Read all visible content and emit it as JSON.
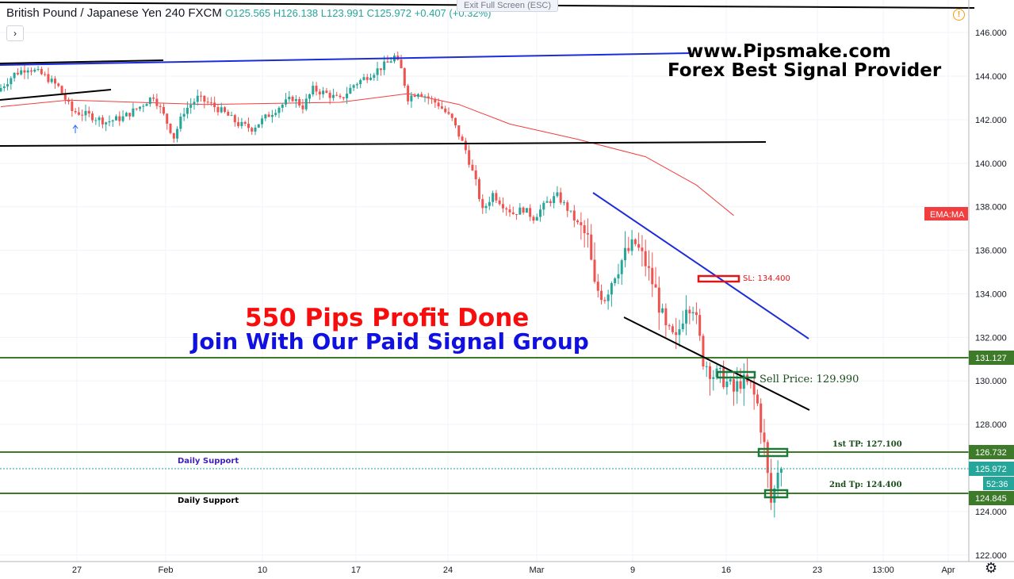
{
  "header": {
    "symbol": "British Pound / Japanese Yen",
    "interval": "240",
    "exchange": "FXCM",
    "open": "O125.565",
    "high": "H126.138",
    "low": "L123.991",
    "close": "C125.972",
    "change": "+0.407 (+0.32%)",
    "exit_fullscreen": "Exit Full Screen (ESC)",
    "expand_glyph": "›",
    "alert_glyph": "!"
  },
  "overlay_text": {
    "site": "www.Pipsmake.com",
    "tagline": "Forex Best Signal Provider",
    "profit": "550 Pips Profit Done",
    "join": "Join With Our Paid Signal Group",
    "sl": "SL: 134.400",
    "sell": "Sell Price: 129.990",
    "tp1": "1st TP: 127.100",
    "tp2": "2nd Tp: 124.400",
    "daily_support_1": "Daily Support",
    "daily_support_2": "Daily Support",
    "ema_badge": "EMA:MA"
  },
  "price_labels": {
    "resistance": "131.127",
    "tp_level": "126.732",
    "last": "125.972",
    "countdown": "52:36",
    "support": "124.845"
  },
  "colors": {
    "up": "#26a69a",
    "down": "#ef5350",
    "ema": "#f23e3e",
    "level_line": "#3d7a2a",
    "trend_blue": "#1d2cdb",
    "trend_black": "#000000",
    "profit_red": "#f70d0d",
    "join_blue": "#1010e0"
  },
  "chart_data": {
    "type": "candlestick",
    "symbol": "GBPJPY",
    "interval": "240",
    "y_axis": {
      "range": [
        121.7,
        147.5
      ],
      "ticks": [
        122,
        124,
        126,
        128,
        130,
        132,
        134,
        136,
        138,
        140,
        142,
        144,
        146
      ],
      "tick_labels": [
        "122.000",
        "124.000",
        "126.000",
        "128.000",
        "130.000",
        "132.000",
        "134.000",
        "136.000",
        "138.000",
        "140.000",
        "142.000",
        "144.000",
        "146.000"
      ]
    },
    "x_axis": {
      "tick_labels": [
        "27",
        "Feb",
        "10",
        "17",
        "24",
        "Mar",
        "9",
        "16",
        "23",
        "13:00",
        "Apr"
      ]
    },
    "price_path": [
      {
        "t": 0,
        "p": 143.3
      },
      {
        "t": 5,
        "p": 144.1
      },
      {
        "t": 9,
        "p": 144.4
      },
      {
        "t": 14,
        "p": 144.0
      },
      {
        "t": 18,
        "p": 143.5
      },
      {
        "t": 22,
        "p": 142.4
      },
      {
        "t": 27,
        "p": 142.2
      },
      {
        "t": 32,
        "p": 141.9
      },
      {
        "t": 37,
        "p": 142.1
      },
      {
        "t": 42,
        "p": 142.6
      },
      {
        "t": 46,
        "p": 143.1
      },
      {
        "t": 49,
        "p": 142.2
      },
      {
        "t": 52,
        "p": 141.2
      },
      {
        "t": 55,
        "p": 142.4
      },
      {
        "t": 59,
        "p": 143.0
      },
      {
        "t": 63,
        "p": 142.7
      },
      {
        "t": 67,
        "p": 142.3
      },
      {
        "t": 71,
        "p": 141.8
      },
      {
        "t": 75,
        "p": 141.6
      },
      {
        "t": 79,
        "p": 142.1
      },
      {
        "t": 83,
        "p": 142.6
      },
      {
        "t": 87,
        "p": 143.0
      },
      {
        "t": 90,
        "p": 142.6
      },
      {
        "t": 93,
        "p": 143.4
      },
      {
        "t": 97,
        "p": 143.2
      },
      {
        "t": 101,
        "p": 142.9
      },
      {
        "t": 105,
        "p": 143.6
      },
      {
        "t": 109,
        "p": 144.0
      },
      {
        "t": 112,
        "p": 144.3
      },
      {
        "t": 115,
        "p": 144.6
      },
      {
        "t": 117,
        "p": 144.9
      },
      {
        "t": 119,
        "p": 144.3
      },
      {
        "t": 121,
        "p": 143.0
      },
      {
        "t": 124,
        "p": 143.3
      },
      {
        "t": 127,
        "p": 143.0
      },
      {
        "t": 130,
        "p": 142.7
      },
      {
        "t": 134,
        "p": 142.0
      },
      {
        "t": 138,
        "p": 140.6
      },
      {
        "t": 141,
        "p": 139.1
      },
      {
        "t": 143,
        "p": 137.8
      },
      {
        "t": 146,
        "p": 138.6
      },
      {
        "t": 149,
        "p": 138.1
      },
      {
        "t": 152,
        "p": 137.7
      },
      {
        "t": 155,
        "p": 137.9
      },
      {
        "t": 158,
        "p": 137.5
      },
      {
        "t": 162,
        "p": 138.2
      },
      {
        "t": 165,
        "p": 138.5
      },
      {
        "t": 168,
        "p": 137.9
      },
      {
        "t": 171,
        "p": 137.2
      },
      {
        "t": 174,
        "p": 136.5
      },
      {
        "t": 176,
        "p": 134.3
      },
      {
        "t": 179,
        "p": 133.9
      },
      {
        "t": 182,
        "p": 135.0
      },
      {
        "t": 185,
        "p": 135.8
      },
      {
        "t": 188,
        "p": 136.3
      },
      {
        "t": 191,
        "p": 135.4
      },
      {
        "t": 194,
        "p": 134.1
      },
      {
        "t": 197,
        "p": 132.3
      },
      {
        "t": 200,
        "p": 131.8
      },
      {
        "t": 203,
        "p": 133.6
      },
      {
        "t": 205,
        "p": 133.5
      },
      {
        "t": 208,
        "p": 131.0
      },
      {
        "t": 211,
        "p": 130.3
      },
      {
        "t": 214,
        "p": 130.1
      },
      {
        "t": 217,
        "p": 129.5
      },
      {
        "t": 219,
        "p": 130.0
      },
      {
        "t": 222,
        "p": 129.7
      },
      {
        "t": 224,
        "p": 128.9
      },
      {
        "t": 226,
        "p": 127.0
      },
      {
        "t": 227,
        "p": 125.6
      },
      {
        "t": 228,
        "p": 124.4
      },
      {
        "t": 229,
        "p": 125.0
      },
      {
        "t": 230,
        "p": 125.97
      }
    ],
    "ema": [
      {
        "t": 0,
        "p": 142.6
      },
      {
        "t": 20,
        "p": 142.9
      },
      {
        "t": 60,
        "p": 142.7
      },
      {
        "t": 100,
        "p": 142.8
      },
      {
        "t": 120,
        "p": 143.2
      },
      {
        "t": 135,
        "p": 142.7
      },
      {
        "t": 150,
        "p": 141.8
      },
      {
        "t": 170,
        "p": 141.1
      },
      {
        "t": 190,
        "p": 140.3
      },
      {
        "t": 205,
        "p": 139.0
      },
      {
        "t": 216,
        "p": 137.6
      }
    ]
  }
}
